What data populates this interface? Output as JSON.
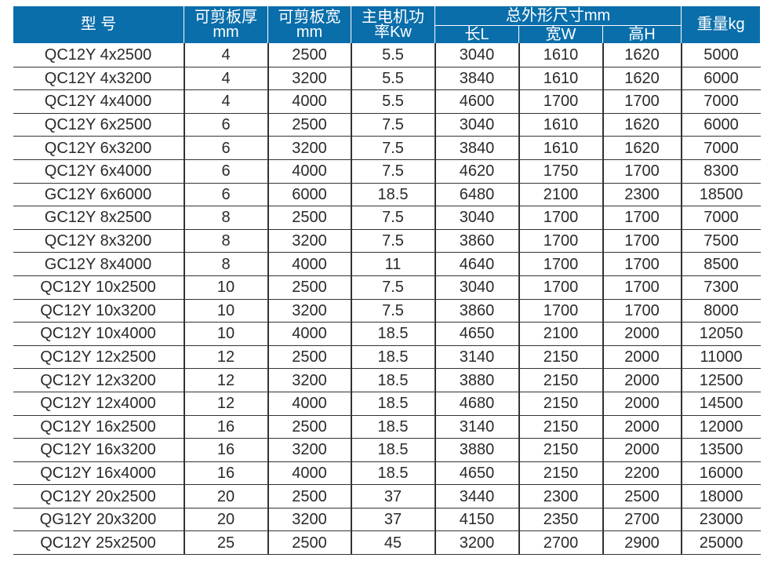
{
  "header": {
    "model": "型 号",
    "thickness": [
      "可剪板厚",
      "mm"
    ],
    "width": [
      "可剪板宽",
      "mm"
    ],
    "power": [
      "主电机功",
      "率Kw"
    ],
    "dimensions": "总外形尺寸mm",
    "length": "长L",
    "width_w": "宽W",
    "height": "高H",
    "weight": "重量kg"
  },
  "rows": [
    [
      "QC12Y 4x2500",
      "4",
      "2500",
      "5.5",
      "3040",
      "1610",
      "1620",
      "5000"
    ],
    [
      "QC12Y 4x3200",
      "4",
      "3200",
      "5.5",
      "3840",
      "1610",
      "1620",
      "6000"
    ],
    [
      "QC12Y 4x4000",
      "4",
      "4000",
      "5.5",
      "4600",
      "1700",
      "1700",
      "7000"
    ],
    [
      "QC12Y 6x2500",
      "6",
      "2500",
      "7.5",
      "3040",
      "1610",
      "1620",
      "6000"
    ],
    [
      "QC12Y 6x3200",
      "6",
      "3200",
      "7.5",
      "3840",
      "1610",
      "1620",
      "7000"
    ],
    [
      "QC12Y 6x4000",
      "6",
      "4000",
      "7.5",
      "4620",
      "1750",
      "1700",
      "8300"
    ],
    [
      "GC12Y 6x6000",
      "6",
      "6000",
      "18.5",
      "6480",
      "2100",
      "2300",
      "18500"
    ],
    [
      "GC12Y 8x2500",
      "8",
      "2500",
      "7.5",
      "3040",
      "1700",
      "1700",
      "7000"
    ],
    [
      "QC12Y 8x3200",
      "8",
      "3200",
      "7.5",
      "3860",
      "1700",
      "1700",
      "7500"
    ],
    [
      "GC12Y 8x4000",
      "8",
      "4000",
      "11",
      "4640",
      "1700",
      "1700",
      "8500"
    ],
    [
      "QC12Y 10x2500",
      "10",
      "2500",
      "7.5",
      "3040",
      "1700",
      "1700",
      "7300"
    ],
    [
      "QC12Y 10x3200",
      "10",
      "3200",
      "7.5",
      "3860",
      "1700",
      "1700",
      "8000"
    ],
    [
      "QC12Y 10x4000",
      "10",
      "4000",
      "18.5",
      "4650",
      "2100",
      "2000",
      "12050"
    ],
    [
      "QC12Y 12x2500",
      "12",
      "2500",
      "18.5",
      "3140",
      "2150",
      "2000",
      "11000"
    ],
    [
      "QC12Y 12x3200",
      "12",
      "3200",
      "18.5",
      "3880",
      "2150",
      "2000",
      "12500"
    ],
    [
      "QC12Y 12x4000",
      "12",
      "4000",
      "18.5",
      "4680",
      "2150",
      "2000",
      "14500"
    ],
    [
      "QC12Y 16x2500",
      "16",
      "2500",
      "18.5",
      "3140",
      "2150",
      "2000",
      "12000"
    ],
    [
      "QC12Y 16x3200",
      "16",
      "3200",
      "18.5",
      "3880",
      "2150",
      "2000",
      "13500"
    ],
    [
      "QC12Y 16x4000",
      "16",
      "4000",
      "18.5",
      "4650",
      "2150",
      "2200",
      "16000"
    ],
    [
      "QC12Y 20x2500",
      "20",
      "2500",
      "37",
      "3440",
      "2300",
      "2500",
      "18000"
    ],
    [
      "QG12Y 20x3200",
      "20",
      "3200",
      "37",
      "4150",
      "2350",
      "2700",
      "23000"
    ],
    [
      "QC12Y 25x2500",
      "25",
      "2500",
      "45",
      "3200",
      "2700",
      "2900",
      "25000"
    ]
  ],
  "colors": {
    "header_bg": "#0a6eab",
    "header_text": "#ffffff",
    "text": "#2a2a2a"
  }
}
